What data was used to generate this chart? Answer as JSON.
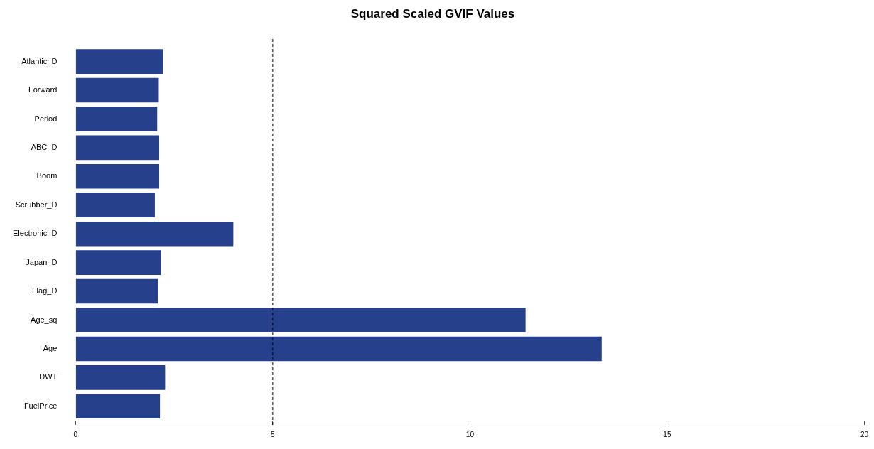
{
  "chart_data": {
    "type": "bar",
    "orientation": "horizontal",
    "title": "Squared Scaled GVIF Values",
    "categories": [
      "Atlantic_D",
      "Forward",
      "Period",
      "ABC_D",
      "Boom",
      "Scrubber_D",
      "Electronic_D",
      "Japan_D",
      "Flag_D",
      "Age_sq",
      "Age",
      "DWT",
      "FuelPrice"
    ],
    "values": [
      2.22,
      2.11,
      2.07,
      2.12,
      2.12,
      2.01,
      4.0,
      2.16,
      2.09,
      11.41,
      13.34,
      2.27,
      2.14
    ],
    "color": "#27408b",
    "xlim": [
      0,
      20
    ],
    "xticks": [
      0,
      5,
      10,
      15,
      20
    ],
    "ref_lines": [
      {
        "axis": "x",
        "value": 5,
        "line_style": "dashed",
        "color": "#000000"
      }
    ],
    "grid": false,
    "legend": false
  }
}
